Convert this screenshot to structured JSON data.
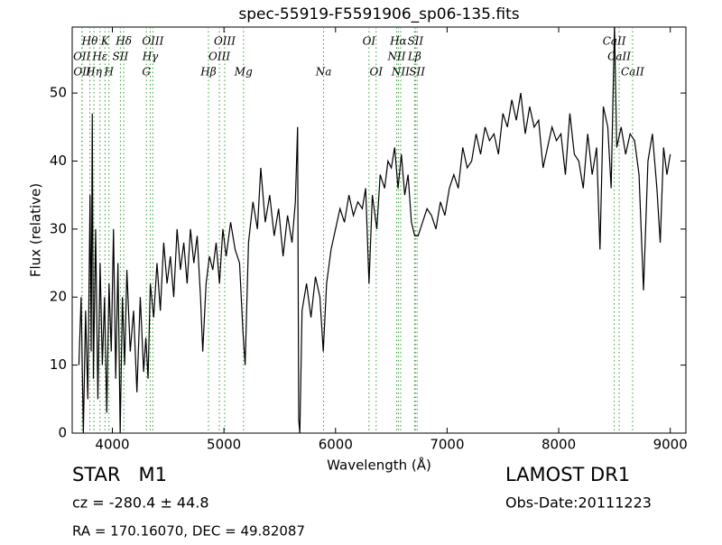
{
  "chart_data": {
    "type": "line",
    "title": "spec-55919-F5591906_sp06-135.fits",
    "x_label": "Wavelength (Å)",
    "y_label": "Flux (relative)",
    "xlim": [
      3640,
      9140
    ],
    "ylim": [
      0,
      59.7
    ],
    "xticks": [
      4000,
      5000,
      6000,
      7000,
      8000,
      9000
    ],
    "yticks": [
      0,
      10,
      20,
      30,
      40,
      50
    ],
    "color": "#000000",
    "line_color": "#3a9a3a",
    "x": [
      3700,
      3720,
      3740,
      3760,
      3780,
      3800,
      3810,
      3820,
      3830,
      3850,
      3870,
      3890,
      3910,
      3930,
      3950,
      3970,
      3990,
      4010,
      4030,
      4050,
      4070,
      4090,
      4110,
      4130,
      4160,
      4190,
      4220,
      4250,
      4280,
      4300,
      4320,
      4340,
      4370,
      4400,
      4430,
      4460,
      4490,
      4520,
      4550,
      4580,
      4610,
      4640,
      4670,
      4700,
      4730,
      4760,
      4790,
      4810,
      4840,
      4870,
      4900,
      4930,
      4960,
      4990,
      5020,
      5060,
      5100,
      5140,
      5170,
      5190,
      5220,
      5260,
      5300,
      5330,
      5370,
      5410,
      5450,
      5490,
      5530,
      5570,
      5610,
      5640,
      5660,
      5670,
      5680,
      5700,
      5740,
      5780,
      5820,
      5860,
      5890,
      5920,
      5960,
      6000,
      6040,
      6080,
      6120,
      6160,
      6200,
      6240,
      6270,
      6300,
      6330,
      6370,
      6400,
      6440,
      6470,
      6500,
      6530,
      6560,
      6590,
      6620,
      6650,
      6680,
      6710,
      6740,
      6780,
      6820,
      6860,
      6900,
      6940,
      6980,
      7020,
      7060,
      7100,
      7140,
      7180,
      7220,
      7260,
      7300,
      7340,
      7380,
      7420,
      7460,
      7500,
      7540,
      7580,
      7620,
      7660,
      7700,
      7740,
      7780,
      7820,
      7860,
      7900,
      7940,
      7980,
      8020,
      8060,
      8100,
      8140,
      8180,
      8220,
      8260,
      8300,
      8340,
      8370,
      8400,
      8440,
      8470,
      8500,
      8520,
      8560,
      8600,
      8640,
      8680,
      8720,
      8760,
      8800,
      8840,
      8880,
      8910,
      8940,
      8970,
      9000
    ],
    "values": [
      10,
      20,
      0,
      18,
      5,
      35,
      12,
      47,
      8,
      30,
      5,
      25,
      10,
      20,
      3,
      22,
      12,
      30,
      8,
      25,
      0,
      20,
      10,
      24,
      12,
      18,
      6,
      20,
      9,
      14,
      8,
      22,
      17,
      25,
      18,
      28,
      22,
      26,
      20,
      30,
      24,
      28,
      22,
      30,
      25,
      29,
      20,
      12,
      22,
      26,
      24,
      28,
      22,
      30,
      26,
      31,
      27,
      25,
      15,
      10,
      28,
      34,
      30,
      39,
      31,
      35,
      29,
      33,
      26,
      32,
      28,
      34,
      45,
      2,
      0,
      18,
      22,
      17,
      23,
      20,
      12,
      22,
      27,
      30,
      33,
      31,
      35,
      32,
      34,
      33,
      36,
      22,
      35,
      30,
      38,
      36,
      40,
      39,
      42,
      36,
      41,
      35,
      38,
      31,
      29,
      29,
      31,
      33,
      32,
      30,
      34,
      32,
      36,
      38,
      36,
      42,
      39,
      40,
      44,
      41,
      45,
      43,
      44,
      41,
      47,
      45,
      49,
      46,
      50,
      44,
      48,
      45,
      46,
      39,
      42,
      45,
      43,
      44,
      38,
      47,
      41,
      40,
      36,
      44,
      38,
      42,
      27,
      48,
      45,
      36,
      60,
      42,
      45,
      41,
      44,
      43,
      38,
      21,
      40,
      44,
      36,
      28,
      42,
      38,
      41
    ],
    "lines": [
      {
        "wavelength": 3798,
        "label": "Hθ"
      },
      {
        "wavelength": 3934,
        "label": "K"
      },
      {
        "wavelength": 4102,
        "label": "Hδ"
      },
      {
        "wavelength": 4363,
        "label": "OIII"
      },
      {
        "wavelength": 5007,
        "label": "OIII"
      },
      {
        "wavelength": 6300,
        "label": "OI"
      },
      {
        "wavelength": 6563,
        "label": "Hα"
      },
      {
        "wavelength": 6716,
        "label": "SII"
      },
      {
        "wavelength": 8498,
        "label": "CaII"
      },
      {
        "wavelength": 3727,
        "label": "OII"
      },
      {
        "wavelength": 3889,
        "label": "Hε"
      },
      {
        "wavelength": 4072,
        "label": "SII"
      },
      {
        "wavelength": 4340,
        "label": "Hγ"
      },
      {
        "wavelength": 4959,
        "label": "OIII"
      },
      {
        "wavelength": 6548,
        "label": "NII"
      },
      {
        "wavelength": 6708,
        "label": "Lβ"
      },
      {
        "wavelength": 8542,
        "label": "CaII"
      },
      {
        "wavelength": 3729,
        "label": "OII"
      },
      {
        "wavelength": 3835,
        "label": "Hη"
      },
      {
        "wavelength": 3969,
        "label": "H"
      },
      {
        "wavelength": 4305,
        "label": "G"
      },
      {
        "wavelength": 4861,
        "label": "Hβ"
      },
      {
        "wavelength": 5175,
        "label": "Mg"
      },
      {
        "wavelength": 5893,
        "label": "Na"
      },
      {
        "wavelength": 6364,
        "label": "OI"
      },
      {
        "wavelength": 6583,
        "label": "NII"
      },
      {
        "wavelength": 6731,
        "label": "SII"
      },
      {
        "wavelength": 8662,
        "label": "CaII"
      }
    ]
  },
  "info": {
    "object": "STAR   M1",
    "cz": "cz = -280.4 ± 44.8",
    "coords": "RA = 170.16070, DEC = 49.82087",
    "survey": "LAMOST DR1",
    "date": "Obs-Date:20111223"
  }
}
